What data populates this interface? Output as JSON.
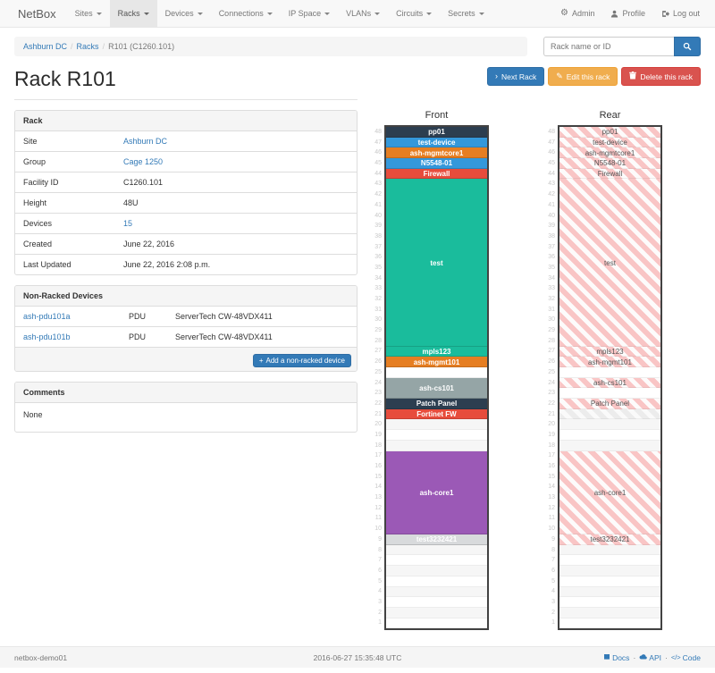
{
  "navbar": {
    "brand": "NetBox",
    "items": [
      {
        "label": "Sites"
      },
      {
        "label": "Racks"
      },
      {
        "label": "Devices"
      },
      {
        "label": "Connections"
      },
      {
        "label": "IP Space"
      },
      {
        "label": "VLANs"
      },
      {
        "label": "Circuits"
      },
      {
        "label": "Secrets"
      }
    ],
    "active_item": "Racks",
    "right_items": [
      {
        "icon": "gear-icon",
        "label": "Admin"
      },
      {
        "icon": "person-icon",
        "label": "Profile"
      },
      {
        "icon": "logout-icon",
        "label": "Log out"
      }
    ]
  },
  "breadcrumb": {
    "items": [
      "Ashburn DC",
      "Racks",
      "R101 (C1260.101)"
    ]
  },
  "search": {
    "placeholder": "Rack name or ID"
  },
  "page": {
    "title": "Rack R101"
  },
  "actions": {
    "next": "Next Rack",
    "edit": "Edit this rack",
    "delete": "Delete this rack"
  },
  "rack_panel": {
    "title": "Rack",
    "rows": [
      {
        "label": "Site",
        "value": "Ashburn DC",
        "link": true
      },
      {
        "label": "Group",
        "value": "Cage 1250",
        "link": true
      },
      {
        "label": "Facility ID",
        "value": "C1260.101",
        "link": false
      },
      {
        "label": "Height",
        "value": "48U",
        "link": false
      },
      {
        "label": "Devices",
        "value": "15",
        "link": true
      },
      {
        "label": "Created",
        "value": "June 22, 2016",
        "link": false
      },
      {
        "label": "Last Updated",
        "value": "June 22, 2016 2:08 p.m.",
        "link": false
      }
    ]
  },
  "nonracked_panel": {
    "title": "Non-Racked Devices",
    "devices": [
      {
        "name": "ash-pdu101a",
        "type": "PDU",
        "model": "ServerTech CW-48VDX411"
      },
      {
        "name": "ash-pdu101b",
        "type": "PDU",
        "model": "ServerTech CW-48VDX411"
      }
    ],
    "add_label": "Add a non-racked device"
  },
  "comments_panel": {
    "title": "Comments",
    "body": "None"
  },
  "elevations": {
    "front_title": "Front",
    "rear_title": "Rear",
    "top_unit": 48,
    "bottom_unit": 1,
    "front_blocks": [
      {
        "h": 1,
        "label": "pp01",
        "color": "#2c3e50"
      },
      {
        "h": 1,
        "label": "test-device",
        "color": "#3498db"
      },
      {
        "h": 1,
        "label": "ash-mgmtcore1",
        "color": "#e67e22"
      },
      {
        "h": 1,
        "label": "N5548-01",
        "color": "#3498db"
      },
      {
        "h": 1,
        "label": "Firewall",
        "color": "#e74c3c"
      },
      {
        "h": 16,
        "label": "test",
        "color": "#1abc9c"
      },
      {
        "h": 1,
        "label": "mpls123",
        "color": "#1abc9c"
      },
      {
        "h": 1,
        "label": "ash-mgmt101",
        "color": "#e67e22"
      },
      {
        "h": 1,
        "empty": true
      },
      {
        "h": 2,
        "label": "ash-cs101",
        "color": "#95a5a6"
      },
      {
        "h": 1,
        "label": "Patch Panel",
        "color": "#2c3e50"
      },
      {
        "h": 1,
        "label": "Fortinet FW",
        "color": "#e74c3c"
      },
      {
        "h": 3,
        "empty": true
      },
      {
        "h": 8,
        "label": "ash-core1",
        "color": "#9b59b6"
      },
      {
        "h": 1,
        "label": "test3232421",
        "color": "#d8dadc",
        "text_color": "#ffffff"
      },
      {
        "h": 8,
        "empty": true
      }
    ],
    "rear_blocks": [
      {
        "h": 1,
        "label": "pp01",
        "striped": true
      },
      {
        "h": 1,
        "label": "test-device",
        "striped": true
      },
      {
        "h": 1,
        "label": "ash-mgmtcore1",
        "striped": true
      },
      {
        "h": 1,
        "label": "N5548-01",
        "striped": true
      },
      {
        "h": 1,
        "label": "Firewall",
        "striped": true
      },
      {
        "h": 16,
        "label": "test",
        "striped": true
      },
      {
        "h": 1,
        "label": "mpls123",
        "striped": true
      },
      {
        "h": 1,
        "label": "ash-mgmt101",
        "striped": true
      },
      {
        "h": 1,
        "empty": true
      },
      {
        "h": 1,
        "label": "ash-cs101",
        "striped": true
      },
      {
        "h": 1,
        "empty": true
      },
      {
        "h": 1,
        "label": "Patch Panel",
        "striped": true
      },
      {
        "h": 1,
        "striped_gray": true
      },
      {
        "h": 3,
        "empty": true
      },
      {
        "h": 8,
        "label": "ash-core1",
        "striped": true
      },
      {
        "h": 1,
        "label": "test3232421",
        "striped": true
      },
      {
        "h": 8,
        "empty": true
      }
    ]
  },
  "footer": {
    "hostname": "netbox-demo01",
    "timestamp": "2016-06-27 15:35:48 UTC",
    "links": [
      {
        "icon": "book-icon",
        "label": "Docs"
      },
      {
        "icon": "cloud-icon",
        "label": "API"
      },
      {
        "icon": "code-icon",
        "label": "Code"
      }
    ]
  },
  "colors": {
    "link": "#337ab7",
    "primary": "#337ab7",
    "warning": "#f0ad4e",
    "danger": "#d9534f",
    "stripe_pink": "#f9c5c5",
    "rack_border": "#424242"
  }
}
